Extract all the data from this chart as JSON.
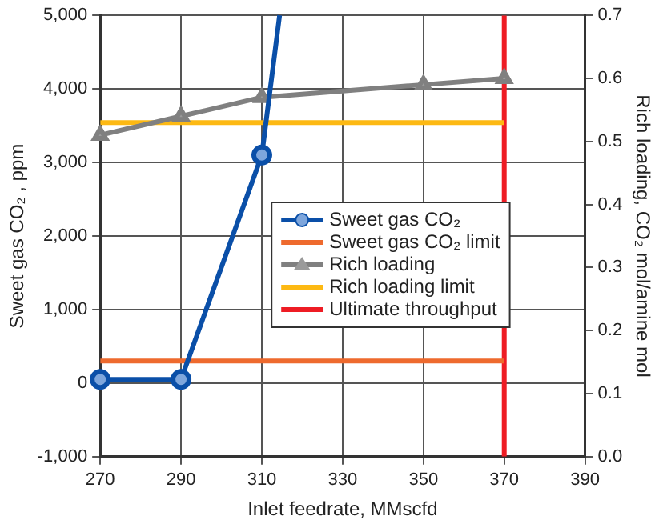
{
  "chart_data": {
    "type": "line",
    "xlabel": "Inlet feedrate, MMscfd",
    "ylabel": "Sweet gas CO₂ , ppm",
    "y2label": "Rich loading, CO₂ mol/amine mol",
    "series": [
      {
        "name": "Sweet gas CO₂",
        "color": "#0a4fa8",
        "x": [
          270,
          290,
          310,
          314.4
        ],
        "values": [
          50,
          50,
          3100,
          5000
        ],
        "marker": "circle"
      },
      {
        "name": "Sweet gas CO₂ limit",
        "color": "#ee6a2e",
        "x": [
          270,
          370
        ],
        "values": [
          300,
          300
        ],
        "marker": "none"
      },
      {
        "name": "Rich loading",
        "color": "#808080",
        "x": [
          270,
          290,
          310,
          350,
          370
        ],
        "values": [
          0.51,
          0.54,
          0.57,
          0.59,
          0.6
        ],
        "axis": "y2",
        "marker": "triangle"
      },
      {
        "name": "Rich loading limit",
        "color": "#fdb913",
        "x": [
          270,
          370
        ],
        "values": [
          0.53,
          0.53
        ],
        "axis": "y2",
        "marker": "none"
      },
      {
        "name": "Ultimate throughput",
        "color": "#ee1c24",
        "x": [
          370,
          370
        ],
        "values": [
          -1000,
          5000
        ],
        "marker": "none"
      }
    ],
    "xlim": [
      270,
      390
    ],
    "xticks": [
      270,
      290,
      310,
      330,
      350,
      370,
      390
    ],
    "ylim": [
      -1000,
      5000
    ],
    "yticks": [
      {
        "value": -1000,
        "label": "-1,000"
      },
      0,
      {
        "value": 1000,
        "label": "1,000"
      },
      {
        "value": 2000,
        "label": "2,000"
      },
      {
        "value": 3000,
        "label": "3,000"
      },
      {
        "value": 4000,
        "label": "4,000"
      },
      {
        "value": 5000,
        "label": "5,000"
      }
    ],
    "y2lim": [
      0,
      0.7
    ],
    "y2ticks": [
      {
        "value": 0,
        "label": "0.0"
      },
      0.1,
      0.2,
      0.3,
      0.4,
      0.5,
      0.6,
      0.7
    ],
    "grid": true,
    "legend": "center"
  }
}
